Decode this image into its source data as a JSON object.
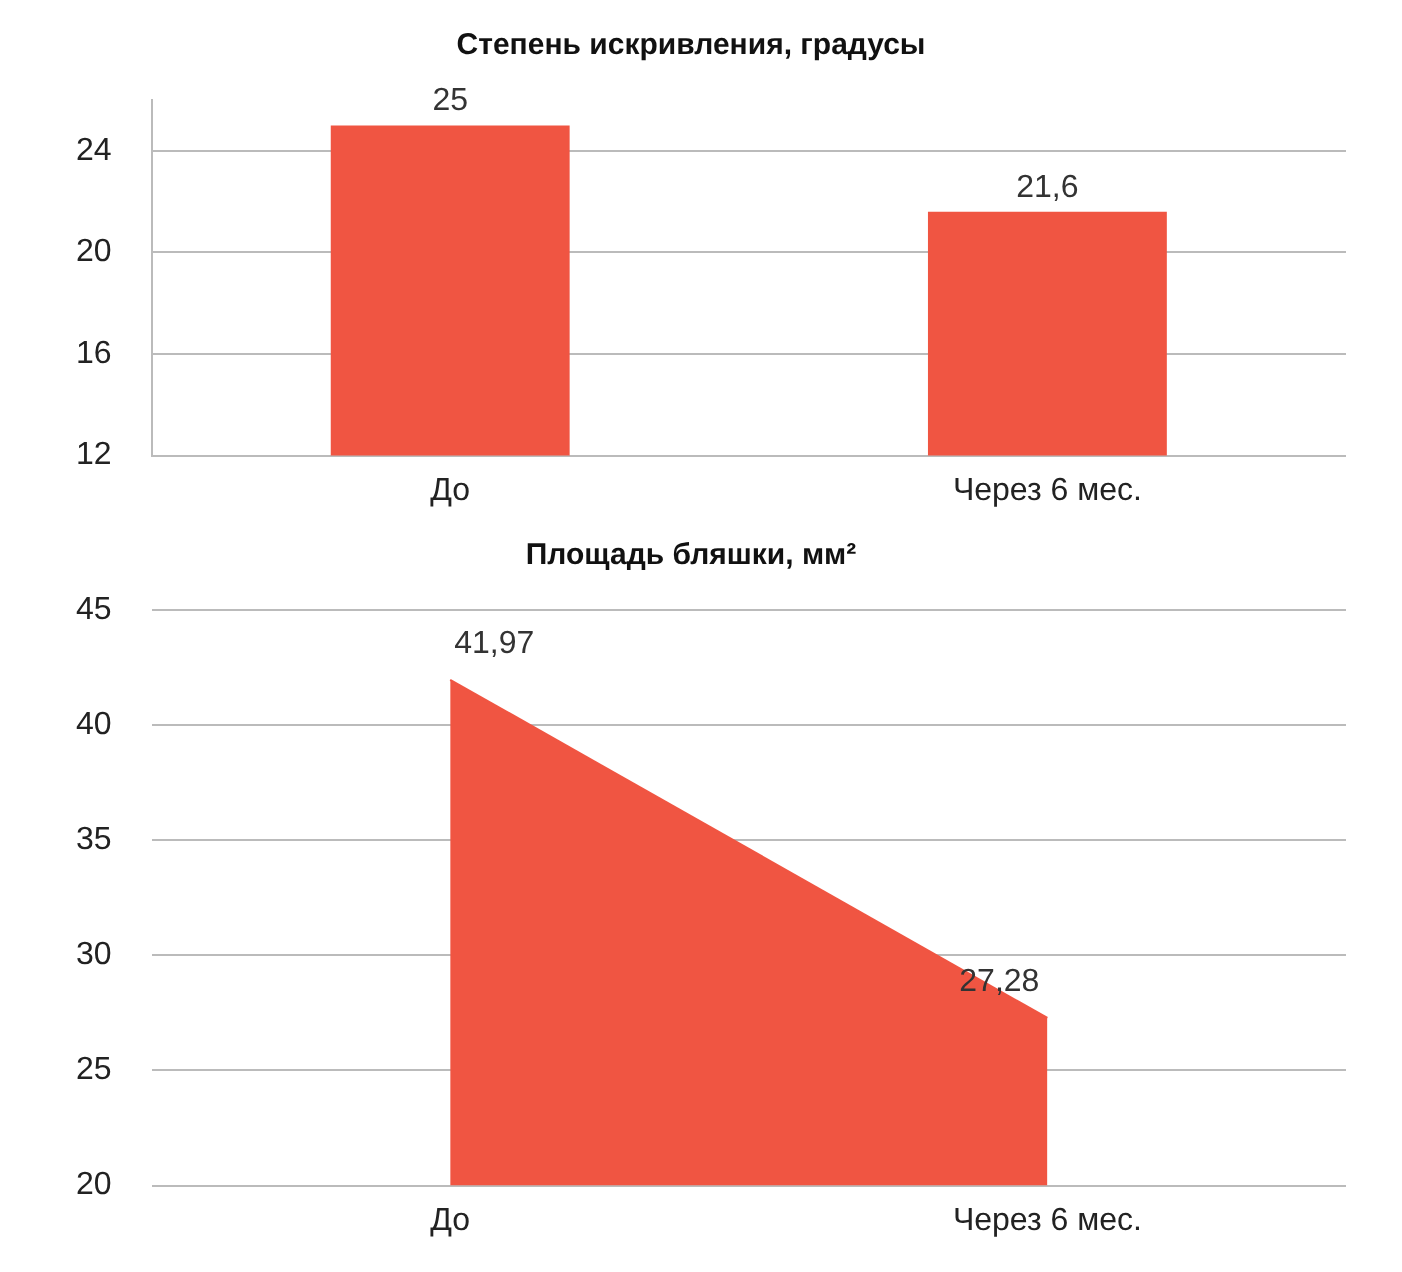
{
  "chart_data": [
    {
      "type": "bar",
      "title": "Степень искривления, градусы",
      "categories": [
        "До",
        "Через 6 мес."
      ],
      "values": [
        25,
        21.6
      ],
      "value_labels": [
        "25",
        "21,6"
      ],
      "color": "#f05542",
      "ylim": [
        12,
        26
      ],
      "yticks": [
        12,
        16,
        20,
        24
      ],
      "grid": "y"
    },
    {
      "type": "area",
      "title": "Площадь бляшки, мм²",
      "categories": [
        "До",
        "Через 6 мес."
      ],
      "values": [
        41.97,
        27.28
      ],
      "value_labels": [
        "41,97",
        "27,28"
      ],
      "color": "#f05542",
      "ylim": [
        20,
        45
      ],
      "yticks": [
        20,
        25,
        30,
        35,
        40,
        45
      ],
      "grid": "y"
    }
  ]
}
